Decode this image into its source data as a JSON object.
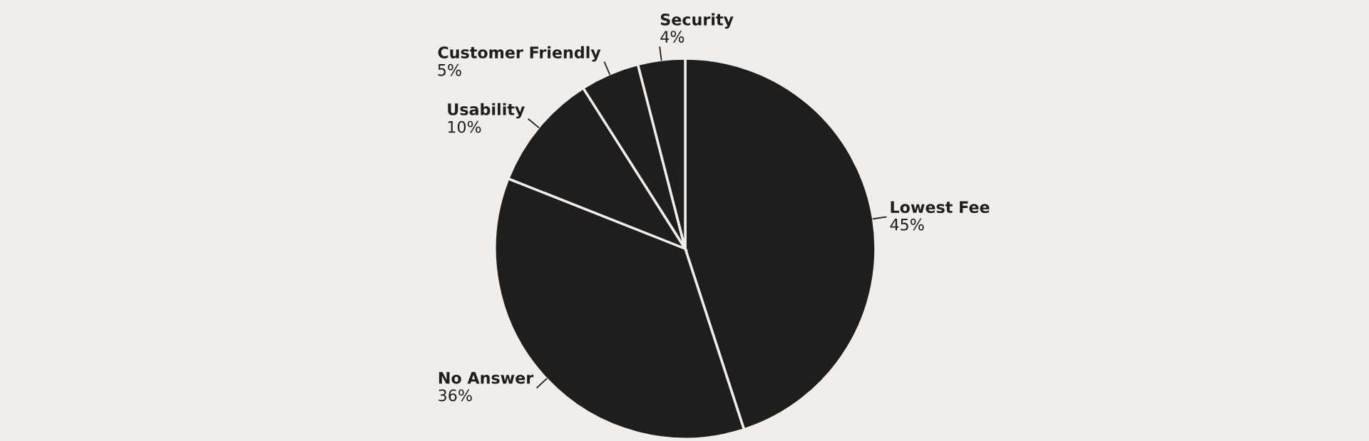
{
  "chart_data": {
    "type": "pie",
    "categories": [
      "Lowest Fee",
      "No Answer",
      "Usability",
      "Customer Friendly",
      "Security"
    ],
    "values": [
      45,
      36,
      10,
      5,
      4
    ],
    "value_labels": [
      "45%",
      "36%",
      "10%",
      "5%",
      "4%"
    ],
    "colors": [
      "#1f1e1c",
      "#1f1e1c",
      "#1f1e1c",
      "#1f1e1c",
      "#1f1e1c"
    ],
    "legend": false
  }
}
